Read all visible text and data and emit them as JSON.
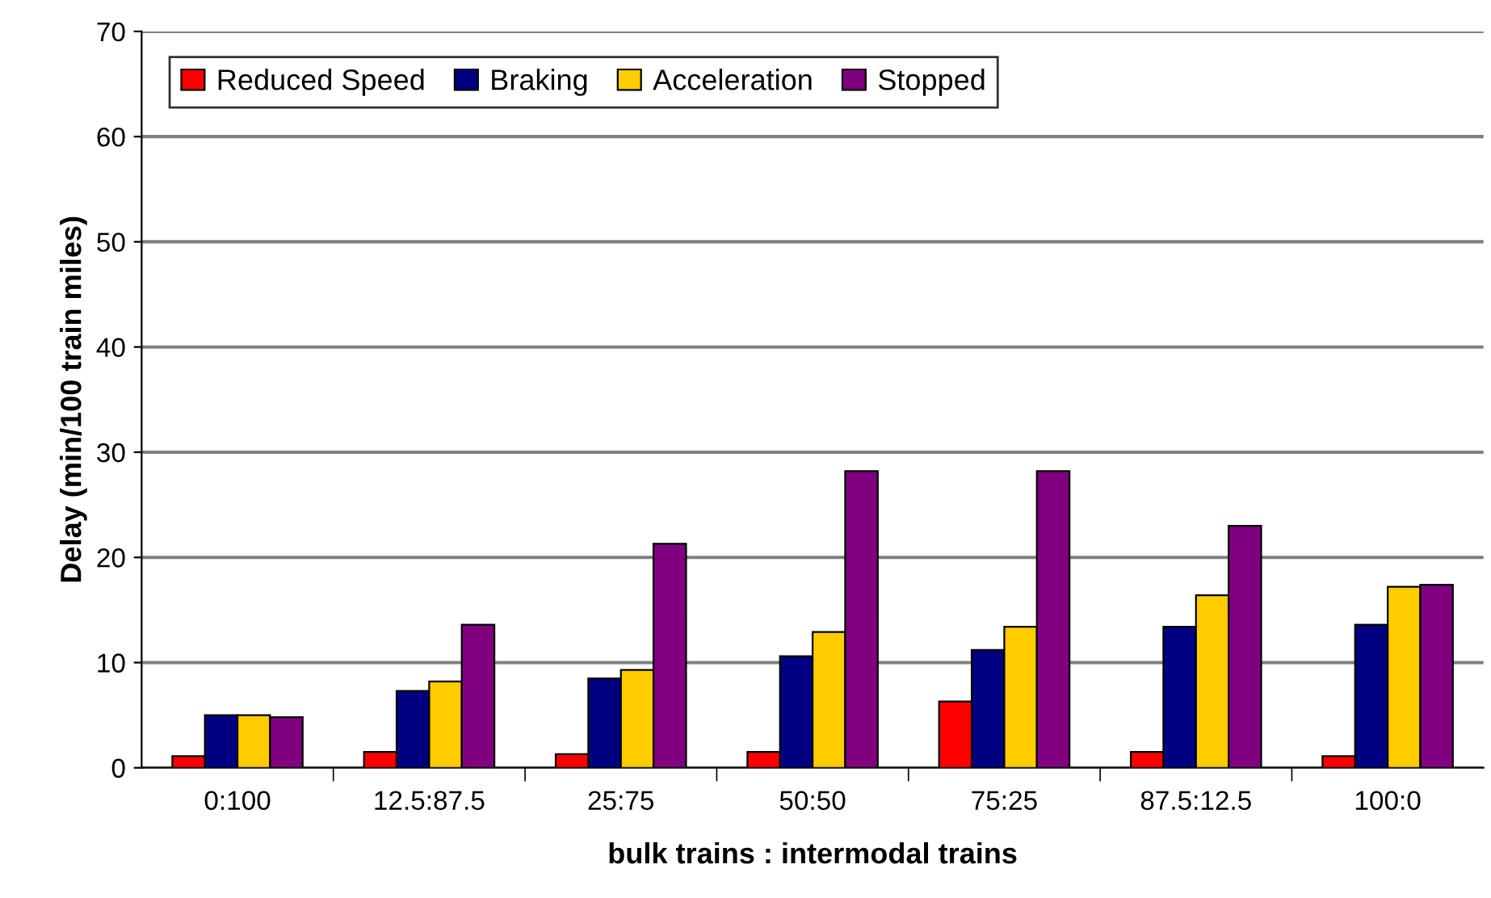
{
  "chart_data": {
    "type": "bar",
    "xlabel": "bulk trains : intermodal trains",
    "ylabel": "Delay (min/100 train miles)",
    "categories": [
      "0:100",
      "12.5:87.5",
      "25:75",
      "50:50",
      "75:25",
      "87.5:12.5",
      "100:0"
    ],
    "series": [
      {
        "name": "Reduced Speed",
        "color": "#ff0000",
        "values": [
          1.1,
          1.5,
          1.3,
          1.5,
          6.3,
          1.5,
          1.1
        ]
      },
      {
        "name": "Braking",
        "color": "#000080",
        "values": [
          5.0,
          7.3,
          8.5,
          10.6,
          11.2,
          13.4,
          13.6
        ]
      },
      {
        "name": "Acceleration",
        "color": "#ffcc00",
        "values": [
          5.0,
          8.2,
          9.3,
          12.9,
          13.4,
          16.4,
          17.2
        ]
      },
      {
        "name": "Stopped",
        "color": "#800080",
        "values": [
          4.8,
          13.6,
          21.3,
          28.2,
          28.2,
          23.0,
          17.4
        ]
      }
    ],
    "ylim": [
      0,
      70
    ],
    "yticks": [
      0,
      10,
      20,
      30,
      40,
      50,
      60,
      70
    ],
    "grid": "y",
    "legend": "top left"
  }
}
